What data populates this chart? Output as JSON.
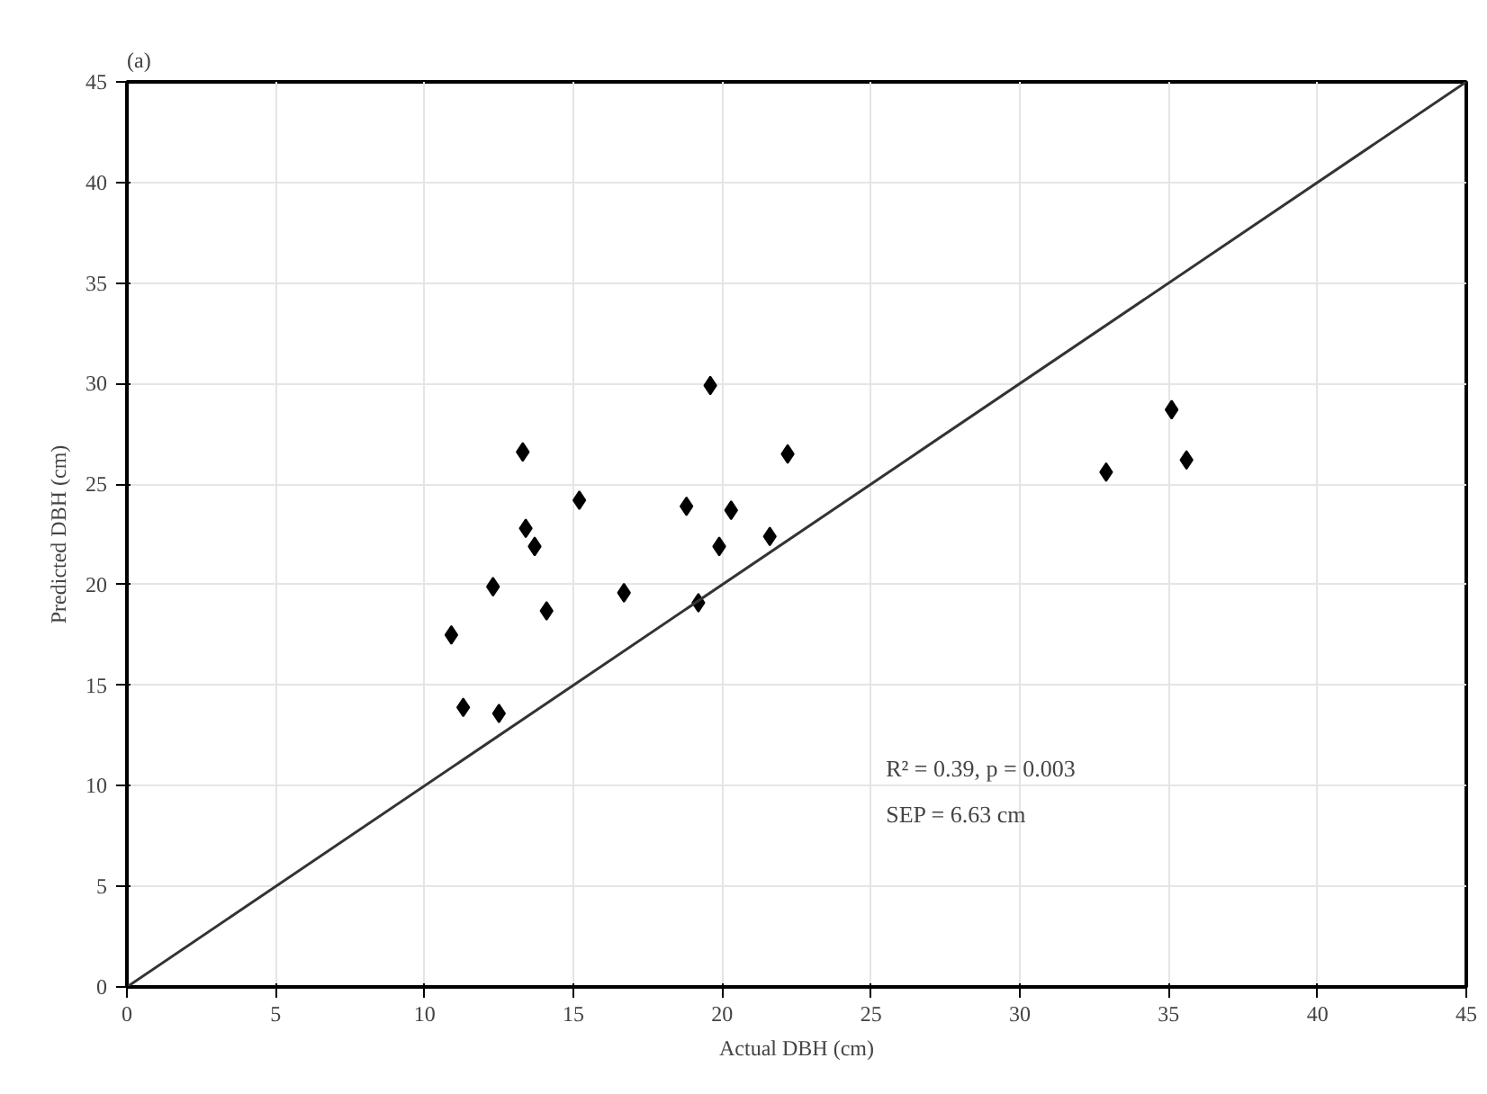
{
  "chart_data": {
    "type": "scatter",
    "xlabel": "Actual DBH (cm)",
    "ylabel": "Predicted DBH (cm)",
    "title": "(a)",
    "annotations": [
      "R² = 0.39, p = 0.003",
      "SEP = 6.63 cm"
    ],
    "xlim": [
      0,
      45
    ],
    "ylim": [
      0,
      45
    ],
    "xticks": [
      0,
      5,
      10,
      15,
      20,
      25,
      30,
      35,
      40,
      45
    ],
    "yticks": [
      0,
      5,
      10,
      15,
      20,
      25,
      30,
      35,
      40,
      45
    ],
    "grid": true,
    "series": [
      {
        "marker": "diamond",
        "color": "#000000",
        "x": [
          10.9,
          11.3,
          12.5,
          12.3,
          13.3,
          13.4,
          13.7,
          14.1,
          15.2,
          16.7,
          18.8,
          19.6,
          19.2,
          19.9,
          20.3,
          22.2,
          21.6,
          32.9,
          35.1,
          35.6
        ],
        "values": [
          17.5,
          13.9,
          13.6,
          19.9,
          26.6,
          22.8,
          21.9,
          18.7,
          24.2,
          19.6,
          23.9,
          29.9,
          19.1,
          21.9,
          23.7,
          26.5,
          22.4,
          25.6,
          28.7,
          26.2
        ]
      },
      {
        "type": "line",
        "color": "#333333",
        "line_style": "solid",
        "x": [
          0,
          45
        ],
        "values": [
          0,
          45
        ]
      }
    ]
  }
}
